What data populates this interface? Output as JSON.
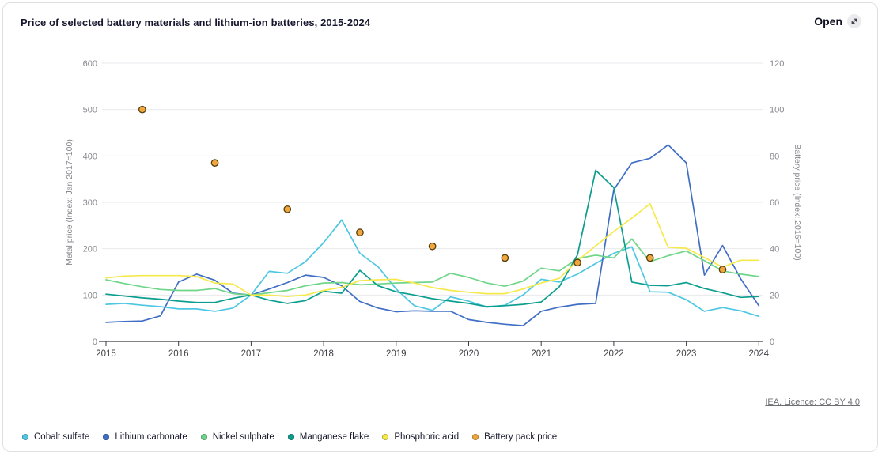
{
  "header": {
    "title": "Price of selected battery materials and lithium-ion batteries, 2015-2024",
    "open_label": "Open",
    "open_icon": "external-link-expand-arrow"
  },
  "footer": {
    "licence": "IEA. Licence: CC BY 4.0"
  },
  "chart_data": {
    "type": "line",
    "title": "Price of selected battery materials and lithium-ion batteries, 2015-2024",
    "grid": "horizontal",
    "legend_position": "bottom",
    "x_tick_years": [
      2015,
      2016,
      2017,
      2018,
      2019,
      2020,
      2021,
      2022,
      2023,
      2024
    ],
    "left_axis": {
      "label": "Metal price (Index: Jan 2017=100)",
      "ticks": [
        0,
        100,
        200,
        300,
        400,
        500,
        600
      ],
      "range": [
        0,
        600
      ]
    },
    "right_axis": {
      "label": "Battery price (Index: 2015=100)",
      "ticks": [
        0,
        20,
        40,
        60,
        80,
        100,
        120
      ],
      "range": [
        0,
        120
      ]
    },
    "x": [
      2015,
      2015.25,
      2015.5,
      2015.75,
      2016,
      2016.25,
      2016.5,
      2016.75,
      2017,
      2017.25,
      2017.5,
      2017.75,
      2018,
      2018.25,
      2018.5,
      2018.75,
      2019,
      2019.25,
      2019.5,
      2019.75,
      2020,
      2020.25,
      2020.5,
      2020.75,
      2021,
      2021.25,
      2021.5,
      2021.75,
      2022,
      2022.25,
      2022.5,
      2022.75,
      2023,
      2023.25,
      2023.5,
      2023.75,
      2024
    ],
    "series": [
      {
        "name": "Cobalt sulfate",
        "axis": "left",
        "color": "#4ec7e3",
        "values": [
          80,
          82,
          78,
          75,
          70,
          70,
          65,
          72,
          100,
          151,
          147,
          172,
          213,
          262,
          190,
          161,
          113,
          77,
          67,
          96,
          87,
          74,
          78,
          100,
          134,
          128,
          145,
          168,
          190,
          204,
          107,
          106,
          90,
          65,
          73,
          66,
          54
        ]
      },
      {
        "name": "Lithium carbonate",
        "axis": "left",
        "color": "#3f6ec4",
        "values": [
          41,
          43,
          44,
          55,
          128,
          145,
          132,
          104,
          100,
          113,
          127,
          143,
          138,
          120,
          86,
          72,
          64,
          66,
          65,
          65,
          47,
          41,
          37,
          34,
          65,
          74,
          80,
          82,
          327,
          385,
          395,
          424,
          385,
          143,
          207,
          135,
          77
        ]
      },
      {
        "name": "Nickel sulphate",
        "axis": "left",
        "color": "#6fd589",
        "values": [
          133,
          125,
          118,
          112,
          110,
          110,
          114,
          103,
          100,
          105,
          110,
          120,
          126,
          127,
          122,
          124,
          126,
          127,
          128,
          147,
          138,
          126,
          119,
          130,
          158,
          152,
          179,
          186,
          180,
          221,
          172,
          185,
          195,
          174,
          152,
          145,
          140
        ]
      },
      {
        "name": "Manganese flake",
        "axis": "left",
        "color": "#0b9e8e",
        "values": [
          102,
          98,
          94,
          91,
          87,
          84,
          84,
          93,
          100,
          89,
          82,
          88,
          108,
          104,
          153,
          120,
          107,
          100,
          92,
          87,
          82,
          75,
          77,
          80,
          85,
          118,
          187,
          369,
          332,
          128,
          121,
          120,
          127,
          114,
          105,
          95,
          97
        ]
      },
      {
        "name": "Phosphoric acid",
        "axis": "left",
        "color": "#f6e94b",
        "values": [
          137,
          141,
          142,
          142,
          142,
          140,
          126,
          124,
          100,
          100,
          97,
          100,
          110,
          117,
          131,
          133,
          134,
          126,
          116,
          110,
          106,
          103,
          103,
          113,
          126,
          136,
          174,
          206,
          237,
          266,
          297,
          203,
          201,
          181,
          160,
          175,
          175
        ]
      }
    ],
    "scatter_series": {
      "name": "Battery pack price",
      "axis": "right",
      "color": "#f0a63c",
      "stroke": "#533f10",
      "x": [
        2015.5,
        2016.5,
        2017.5,
        2018.5,
        2019.5,
        2020.5,
        2021.5,
        2022.5,
        2023.5
      ],
      "values": [
        100,
        77,
        57,
        47,
        41,
        36,
        34,
        36,
        31
      ]
    }
  }
}
